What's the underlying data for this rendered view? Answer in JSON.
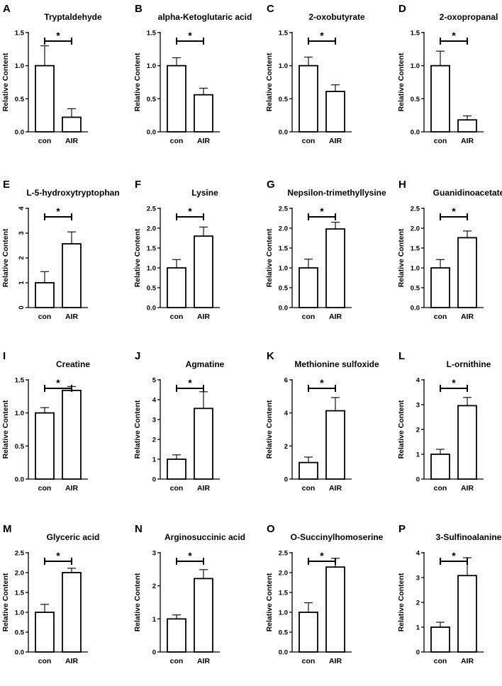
{
  "chart_data": [
    {
      "panel": "A",
      "type": "bar",
      "title": "Tryptaldehyde",
      "categories": [
        "con",
        "AIR"
      ],
      "values": [
        1.0,
        0.22
      ],
      "errors": [
        0.3,
        0.13
      ],
      "ylabel": "Relative Content",
      "ylim": [
        0,
        1.5
      ],
      "yticks": [
        "0.0",
        "0.5",
        "1.0",
        "1.5"
      ],
      "significance": "*"
    },
    {
      "panel": "B",
      "type": "bar",
      "title": "alpha-Ketoglutaric acid",
      "categories": [
        "con",
        "AIR"
      ],
      "values": [
        1.0,
        0.56
      ],
      "errors": [
        0.12,
        0.1
      ],
      "ylabel": "Relative Content",
      "ylim": [
        0,
        1.5
      ],
      "yticks": [
        "0.0",
        "0.5",
        "1.0",
        "1.5"
      ],
      "significance": "*"
    },
    {
      "panel": "C",
      "type": "bar",
      "title": "2-oxobutyrate",
      "categories": [
        "con",
        "AIR"
      ],
      "values": [
        1.0,
        0.61
      ],
      "errors": [
        0.13,
        0.1
      ],
      "ylabel": "Relative Content",
      "ylim": [
        0,
        1.5
      ],
      "yticks": [
        "0.0",
        "0.5",
        "1.0",
        "1.5"
      ],
      "significance": "*"
    },
    {
      "panel": "D",
      "type": "bar",
      "title": "2-oxopropanal",
      "categories": [
        "con",
        "AIR"
      ],
      "values": [
        1.0,
        0.18
      ],
      "errors": [
        0.22,
        0.06
      ],
      "ylabel": "Relative Content",
      "ylim": [
        0,
        1.5
      ],
      "yticks": [
        "0.0",
        "0.5",
        "1.0",
        "1.5"
      ],
      "significance": "*"
    },
    {
      "panel": "E",
      "type": "bar",
      "title": "L-5-hydroxytryptophan",
      "categories": [
        "con",
        "AIR"
      ],
      "values": [
        1.0,
        2.57
      ],
      "errors": [
        0.45,
        0.48
      ],
      "ylabel": "Relative Content",
      "ylim": [
        0,
        4
      ],
      "yticks": [
        "0",
        "1",
        "2",
        "3",
        "4"
      ],
      "significance": "*"
    },
    {
      "panel": "F",
      "type": "bar",
      "title": "Lysine",
      "categories": [
        "con",
        "AIR"
      ],
      "values": [
        1.0,
        1.8
      ],
      "errors": [
        0.21,
        0.23
      ],
      "ylabel": "Relative Content",
      "ylim": [
        0,
        2.5
      ],
      "yticks": [
        "0.0",
        "0.5",
        "1.0",
        "1.5",
        "2.0",
        "2.5"
      ],
      "significance": "*"
    },
    {
      "panel": "G",
      "type": "bar",
      "title": "Nepsilon-trimethyllysine",
      "categories": [
        "con",
        "AIR"
      ],
      "values": [
        1.0,
        1.98
      ],
      "errors": [
        0.22,
        0.17
      ],
      "ylabel": "Relative Content",
      "ylim": [
        0,
        2.5
      ],
      "yticks": [
        "0.0",
        "0.5",
        "1.0",
        "1.5",
        "2.0",
        "2.5"
      ],
      "significance": "*"
    },
    {
      "panel": "H",
      "type": "bar",
      "title": "Guanidinoacetate",
      "categories": [
        "con",
        "AIR"
      ],
      "values": [
        1.0,
        1.76
      ],
      "errors": [
        0.21,
        0.17
      ],
      "ylabel": "Relative Content",
      "ylim": [
        0,
        2.5
      ],
      "yticks": [
        "0.0",
        "0.5",
        "1.0",
        "1.5",
        "2.0",
        "2.5"
      ],
      "significance": "*"
    },
    {
      "panel": "I",
      "type": "bar",
      "title": "Creatine",
      "categories": [
        "con",
        "AIR"
      ],
      "values": [
        1.0,
        1.34
      ],
      "errors": [
        0.08,
        0.06
      ],
      "ylabel": "Relative Content",
      "ylim": [
        0,
        1.5
      ],
      "yticks": [
        "0.0",
        "0.5",
        "1.0",
        "1.5"
      ],
      "significance": "*"
    },
    {
      "panel": "J",
      "type": "bar",
      "title": "Agmatine",
      "categories": [
        "con",
        "AIR"
      ],
      "values": [
        1.0,
        3.56
      ],
      "errors": [
        0.22,
        0.84
      ],
      "ylabel": "Relative Content",
      "ylim": [
        0,
        5
      ],
      "yticks": [
        "0",
        "1",
        "2",
        "3",
        "4",
        "5"
      ],
      "significance": "*"
    },
    {
      "panel": "K",
      "type": "bar",
      "title": "Methionine sulfoxide",
      "categories": [
        "con",
        "AIR"
      ],
      "values": [
        1.0,
        4.13
      ],
      "errors": [
        0.33,
        0.8
      ],
      "ylabel": "Relative Content",
      "ylim": [
        0,
        6
      ],
      "yticks": [
        "0",
        "2",
        "4",
        "6"
      ],
      "significance": "*"
    },
    {
      "panel": "L",
      "type": "bar",
      "title": "L-ornithine",
      "categories": [
        "con",
        "AIR"
      ],
      "values": [
        1.0,
        2.96
      ],
      "errors": [
        0.2,
        0.33
      ],
      "ylabel": "Relative Content",
      "ylim": [
        0,
        4
      ],
      "yticks": [
        "0",
        "1",
        "2",
        "3",
        "4"
      ],
      "significance": "*"
    },
    {
      "panel": "M",
      "type": "bar",
      "title": "Glyceric acid",
      "categories": [
        "con",
        "AIR"
      ],
      "values": [
        1.0,
        2.0
      ],
      "errors": [
        0.2,
        0.11
      ],
      "ylabel": "Relative Content",
      "ylim": [
        0,
        2.5
      ],
      "yticks": [
        "0.0",
        "0.5",
        "1.0",
        "1.5",
        "2.0",
        "2.5"
      ],
      "significance": "*"
    },
    {
      "panel": "N",
      "type": "bar",
      "title": "Arginosuccinic acid",
      "categories": [
        "con",
        "AIR"
      ],
      "values": [
        1.0,
        2.22
      ],
      "errors": [
        0.12,
        0.27
      ],
      "ylabel": "Relative Content",
      "ylim": [
        0,
        3
      ],
      "yticks": [
        "0",
        "1",
        "2",
        "3"
      ],
      "significance": "*"
    },
    {
      "panel": "O",
      "type": "bar",
      "title": "O-Succinylhomoserine",
      "categories": [
        "con",
        "AIR"
      ],
      "values": [
        1.0,
        2.14
      ],
      "errors": [
        0.24,
        0.22
      ],
      "ylabel": "Relative Content",
      "ylim": [
        0,
        2.5
      ],
      "yticks": [
        "0.0",
        "0.5",
        "1.0",
        "1.5",
        "2.0",
        "2.5"
      ],
      "significance": "*"
    },
    {
      "panel": "P",
      "type": "bar",
      "title": "3-Sulfinoalanine",
      "categories": [
        "con",
        "AIR"
      ],
      "values": [
        1.0,
        3.08
      ],
      "errors": [
        0.2,
        0.72
      ],
      "ylabel": "Relative Content",
      "ylim": [
        0,
        4
      ],
      "yticks": [
        "0",
        "1",
        "2",
        "3",
        "4"
      ],
      "significance": "*"
    }
  ],
  "colors": {
    "bar_fill": "#ffffff",
    "stroke": "#000000",
    "text": "#000000"
  }
}
